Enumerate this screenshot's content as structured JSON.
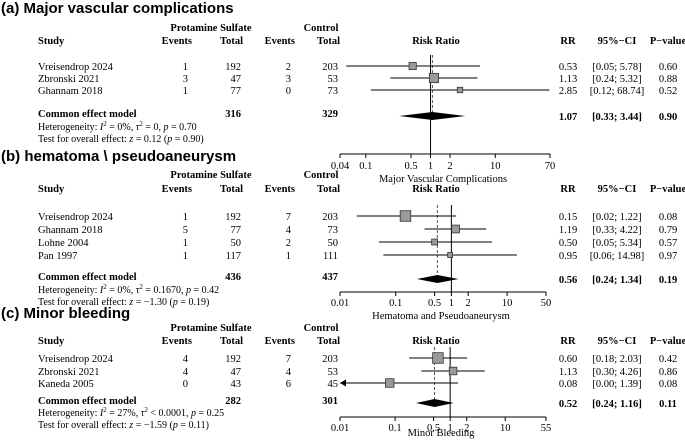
{
  "chart_data": [
    {
      "type": "forest",
      "title": "(a) Major vascular complications",
      "group_labels": [
        "Protamine Sulfate",
        "Control"
      ],
      "columns": [
        "Study",
        "Events",
        "Total",
        "Events",
        "Total",
        "Risk Ratio",
        "RR",
        "95%−CI",
        "P−value"
      ],
      "studies": [
        {
          "name": "Vreisendrop 2024",
          "e1": "1",
          "n1": "192",
          "e2": "2",
          "n2": "203",
          "rr": 0.53,
          "lo": 0.05,
          "hi": 5.78,
          "rr_text": "0.53",
          "ci_text": "[0.05;  5.78]",
          "p_text": "0.60",
          "weight": 0.27
        },
        {
          "name": "Zbronski 2021",
          "e1": "3",
          "n1": "47",
          "e2": "3",
          "n2": "53",
          "rr": 1.13,
          "lo": 0.24,
          "hi": 5.32,
          "rr_text": "1.13",
          "ci_text": "[0.24;  5.32]",
          "p_text": "0.88",
          "weight": 0.44
        },
        {
          "name": "Ghannam 2018",
          "e1": "1",
          "n1": "77",
          "e2": "0",
          "n2": "73",
          "rr": 2.85,
          "lo": 0.12,
          "hi": 68.74,
          "rr_text": "2.85",
          "ci_text": "[0.12; 68.74]",
          "p_text": "0.52",
          "weight": 0.12
        }
      ],
      "summary": {
        "label": "Common effect model",
        "n1": "316",
        "n2": "329",
        "rr": 1.07,
        "lo": 0.33,
        "hi": 3.44,
        "rr_text": "1.07",
        "ci_text": "[0.33;  3.44]",
        "p_text": "0.90"
      },
      "heterogeneity": {
        "prefix": "Heterogeneity: ",
        "i2": "I",
        "i2_value": " = 0%, ",
        "tau": "τ",
        "tau_value": " = 0, ",
        "p": "p",
        "p_value": " = 0.70"
      },
      "overall_test": {
        "prefix": "Test for overall effect: ",
        "z": "z",
        "z_value": " = 0.12 (",
        "p": "p",
        "p_value": " = 0.90)"
      },
      "ticks": [
        0.04,
        0.1,
        0.5,
        1,
        2,
        10,
        70
      ],
      "tick_labels": [
        "0.04",
        "0.1",
        "0.5",
        "1",
        "2",
        "10",
        "70"
      ],
      "xlim": [
        0.04,
        70
      ],
      "xlabel": "Major Vascular Complications",
      "reference_line": 1
    },
    {
      "type": "forest",
      "title": "(b) hematoma \\ pseudoaneurysm",
      "group_labels": [
        "Protamine Sulfate",
        "Control"
      ],
      "columns": [
        "Study",
        "Events",
        "Total",
        "Events",
        "Total",
        "Risk Ratio",
        "RR",
        "95%−CI",
        "P−value"
      ],
      "studies": [
        {
          "name": "Vreisendrop 2024",
          "e1": "1",
          "n1": "192",
          "e2": "7",
          "n2": "203",
          "rr": 0.15,
          "lo": 0.02,
          "hi": 1.22,
          "rr_text": "0.15",
          "ci_text": "[0.02;  1.22]",
          "p_text": "0.08",
          "weight": 0.55
        },
        {
          "name": "Ghannam 2018",
          "e1": "5",
          "n1": "77",
          "e2": "4",
          "n2": "73",
          "rr": 1.19,
          "lo": 0.33,
          "hi": 4.22,
          "rr_text": "1.19",
          "ci_text": "[0.33;  4.22]",
          "p_text": "0.79",
          "weight": 0.32
        },
        {
          "name": "Lohne 2004",
          "e1": "1",
          "n1": "50",
          "e2": "2",
          "n2": "50",
          "rr": 0.5,
          "lo": 0.05,
          "hi": 5.34,
          "rr_text": "0.50",
          "ci_text": "[0.05;  5.34]",
          "p_text": "0.57",
          "weight": 0.16
        },
        {
          "name": "Pan 1997",
          "e1": "1",
          "n1": "117",
          "e2": "1",
          "n2": "111",
          "rr": 0.95,
          "lo": 0.06,
          "hi": 14.98,
          "rr_text": "0.95",
          "ci_text": "[0.06; 14.98]",
          "p_text": "0.97",
          "weight": 0.08
        }
      ],
      "summary": {
        "label": "Common effect model",
        "n1": "436",
        "n2": "437",
        "rr": 0.56,
        "lo": 0.24,
        "hi": 1.34,
        "rr_text": "0.56",
        "ci_text": "[0.24;  1.34]",
        "p_text": "0.19"
      },
      "heterogeneity": {
        "prefix": "Heterogeneity: ",
        "i2": "I",
        "i2_value": " = 0%, ",
        "tau": "τ",
        "tau_value": " = 0.1670, ",
        "p": "p",
        "p_value": " = 0.42"
      },
      "overall_test": {
        "prefix": "Test for overall effect: ",
        "z": "z",
        "z_value": " = −1.30 (",
        "p": "p",
        "p_value": " = 0.19)"
      },
      "ticks": [
        0.01,
        0.1,
        0.5,
        1,
        2,
        10,
        50
      ],
      "tick_labels": [
        "0.01",
        "0.1",
        "0.5",
        "1",
        "2",
        "10",
        "50"
      ],
      "xlim": [
        0.01,
        50
      ],
      "xlabel": "Hematoma and Pseudoaneurysm",
      "reference_line": 1
    },
    {
      "type": "forest",
      "title": "(c) Minor bleeding",
      "group_labels": [
        "Protamine Sulfate",
        "Control"
      ],
      "columns": [
        "Study",
        "Events",
        "Total",
        "Events",
        "Total",
        "Risk Ratio",
        "RR",
        "95%−CI",
        "P−value"
      ],
      "studies": [
        {
          "name": "Vreisendrop 2024",
          "e1": "4",
          "n1": "192",
          "e2": "7",
          "n2": "203",
          "rr": 0.6,
          "lo": 0.18,
          "hi": 2.03,
          "rr_text": "0.60",
          "ci_text": "[0.18; 2.03]",
          "p_text": "0.42",
          "weight": 0.55
        },
        {
          "name": "Zbronski 2021",
          "e1": "4",
          "n1": "47",
          "e2": "4",
          "n2": "53",
          "rr": 1.13,
          "lo": 0.3,
          "hi": 4.26,
          "rr_text": "1.13",
          "ci_text": "[0.30; 4.26]",
          "p_text": "0.86",
          "weight": 0.3
        },
        {
          "name": "Kaneda 2005",
          "e1": "0",
          "n1": "43",
          "e2": "6",
          "n2": "45",
          "rr": 0.08,
          "lo": 0.0,
          "hi": 1.39,
          "rr_text": "0.08",
          "ci_text": "[0.00; 1.39]",
          "p_text": "0.08",
          "weight": 0.38,
          "arrow_left": true
        }
      ],
      "summary": {
        "label": "Common effect model",
        "n1": "282",
        "n2": "301",
        "rr": 0.52,
        "lo": 0.24,
        "hi": 1.16,
        "rr_text": "0.52",
        "ci_text": "[0.24; 1.16]",
        "p_text": "0.11"
      },
      "heterogeneity": {
        "prefix": "Heterogeneity: ",
        "i2": "I",
        "i2_value": " = 27%, ",
        "tau": "τ",
        "tau_value": " < 0.0001, ",
        "p": "p",
        "p_value": " = 0.25"
      },
      "overall_test": {
        "prefix": "Test for overall effect: ",
        "z": "z",
        "z_value": " = −1.59 (",
        "p": "p",
        "p_value": " = 0.11)"
      },
      "ticks": [
        0.01,
        0.1,
        0.5,
        1,
        2,
        10,
        55
      ],
      "tick_labels": [
        "0.01",
        "0.1",
        "0.5",
        "1",
        "2",
        "10",
        "55"
      ],
      "xlim": [
        0.01,
        55
      ],
      "xlabel": "Minor Bleeding",
      "reference_line": 1
    }
  ]
}
